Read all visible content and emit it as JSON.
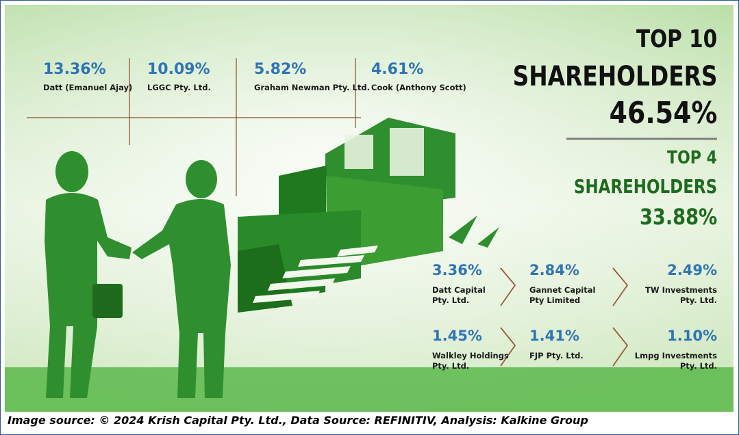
{
  "colors": {
    "blue_pct": "#2e75b6",
    "dark_green": "#1e6b1e",
    "silhouette": "#2f8f2f",
    "background": "#e6f2dc"
  },
  "top10": {
    "title_line1": "TOP 10",
    "title_line2": "SHAREHOLDERS",
    "total": "46.54%"
  },
  "top4": {
    "title_line1": "TOP 4",
    "title_line2": "SHAREHOLDERS",
    "total": "33.88%"
  },
  "chart_data": {
    "type": "table",
    "top_holders": [
      {
        "pct": "13.36%",
        "value": 13.36,
        "name": "Datt (Emanuel Ajay)"
      },
      {
        "pct": "10.09%",
        "value": 10.09,
        "name": "LGGC Pty. Ltd."
      },
      {
        "pct": "5.82%",
        "value": 5.82,
        "name": "Graham Newman Pty. Ltd."
      },
      {
        "pct": "4.61%",
        "value": 4.61,
        "name": "Cook (Anthony Scott)"
      }
    ],
    "other_holders": [
      {
        "pct": "3.36%",
        "value": 3.36,
        "name": "Datt Capital\nPty. Ltd."
      },
      {
        "pct": "2.84%",
        "value": 2.84,
        "name": "Gannet Capital\nPty Limited"
      },
      {
        "pct": "2.49%",
        "value": 2.49,
        "name": "TW Investments\nPty. Ltd."
      },
      {
        "pct": "1.45%",
        "value": 1.45,
        "name": "Walkley Holdings\nPty. Ltd."
      },
      {
        "pct": "1.41%",
        "value": 1.41,
        "name": "FJP Pty. Ltd."
      },
      {
        "pct": "1.10%",
        "value": 1.1,
        "name": "Lmpg Investments\nPty. Ltd."
      }
    ]
  },
  "caption": "Image source: © 2024 Krish Capital Pty. Ltd., Data Source: REFINITIV, Analysis: Kalkine Group"
}
